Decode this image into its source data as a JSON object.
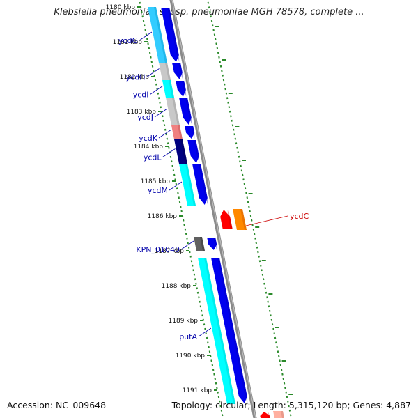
{
  "title": "Klebsiella pneumoniae subsp. pneumoniae MGH 78578, complete ...",
  "footer": {
    "accession": "Accession: NC_009648",
    "topology": "Topology: circular; Length: 5,315,120 bp; Genes: 4,887"
  },
  "scale": {
    "unit": "kbp",
    "ticks": [
      {
        "kbp": 1180,
        "label": "1180 kbp"
      },
      {
        "kbp": 1181,
        "label": "1181 kbp"
      },
      {
        "kbp": 1182,
        "label": "1182 kbp"
      },
      {
        "kbp": 1183,
        "label": "1183 kbp"
      },
      {
        "kbp": 1184,
        "label": "1184 kbp"
      },
      {
        "kbp": 1185,
        "label": "1185 kbp"
      },
      {
        "kbp": 1186,
        "label": "1186 kbp"
      },
      {
        "kbp": 1187,
        "label": "1187 kbp"
      },
      {
        "kbp": 1188,
        "label": "1188 kbp"
      },
      {
        "kbp": 1189,
        "label": "1189 kbp"
      },
      {
        "kbp": 1190,
        "label": "1190 kbp"
      },
      {
        "kbp": 1191,
        "label": "1191 kbp"
      }
    ]
  },
  "features": [
    {
      "id": "ycdG",
      "label": "ycdG",
      "start": 1180.0,
      "end": 1181.6,
      "strand": "+",
      "cds_color": "#0000ee",
      "gene_color": "#33ccff"
    },
    {
      "id": "ycdH",
      "label": "ycdH",
      "start": 1181.6,
      "end": 1182.1,
      "strand": "+",
      "cds_color": "#0000ee",
      "gene_color": "#c8c8c8"
    },
    {
      "id": "ycdI",
      "label": "ycdI",
      "start": 1182.1,
      "end": 1182.6,
      "strand": "+",
      "cds_color": "#0000ee",
      "gene_color": "#00ffff"
    },
    {
      "id": "ycdJ",
      "label": "ycdJ",
      "start": 1182.6,
      "end": 1183.4,
      "strand": "+",
      "cds_color": "#0000ee",
      "gene_color": "#c8c8c8"
    },
    {
      "id": "ycdK",
      "label": "ycdK",
      "start": 1183.4,
      "end": 1183.8,
      "strand": "+",
      "cds_color": "#0000ee",
      "gene_color": "#f08080"
    },
    {
      "id": "ycdL",
      "label": "ycdL",
      "start": 1183.8,
      "end": 1184.5,
      "strand": "+",
      "cds_color": "#0000ee",
      "gene_color": "#000080"
    },
    {
      "id": "ycdM",
      "label": "ycdM",
      "start": 1184.5,
      "end": 1185.7,
      "strand": "+",
      "cds_color": "#0000ee",
      "gene_color": "#00ffff"
    },
    {
      "id": "ycdC",
      "label": "ycdC",
      "start": 1185.8,
      "end": 1186.4,
      "strand": "-",
      "cds_color": "#ff0000",
      "gene_color": "#ff8800",
      "label_color": "#cc0000"
    },
    {
      "id": "KPN_01040",
      "label": "KPN_01040",
      "start": 1186.6,
      "end": 1187.0,
      "strand": "+",
      "cds_color": "#0000ee",
      "gene_color": "#606060"
    },
    {
      "id": "putA",
      "label": "putA",
      "start": 1187.2,
      "end": 1191.4,
      "strand": "+",
      "cds_color": "#0000ee",
      "gene_color": "#00ffff"
    }
  ],
  "bottom_features": [
    {
      "start": 1191.6,
      "end": 1191.9,
      "strand": "-",
      "cds_color": "#ff0000",
      "gene_color": "#ffb0a0"
    },
    {
      "start": 1191.9,
      "end": 1192.0,
      "strand": "-",
      "cds_color": "#5080c0",
      "gene_color": "#c8c8c8"
    }
  ]
}
